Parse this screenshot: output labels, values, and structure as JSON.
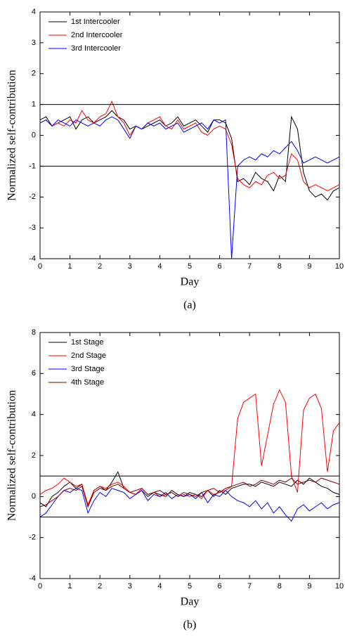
{
  "chart_data": [
    {
      "type": "line",
      "ylabel": "Normalized self-contribution",
      "xlabel": "Day",
      "caption": "(a)",
      "xlim": [
        0,
        10
      ],
      "xticks": [
        0,
        1,
        2,
        3,
        4,
        5,
        6,
        7,
        8,
        9,
        10
      ],
      "ylim": [
        -4,
        4
      ],
      "yticks": [
        -4,
        -3,
        -2,
        -1,
        0,
        1,
        2,
        3,
        4
      ],
      "hlines": [
        1,
        -1
      ],
      "legend": "upper left",
      "x": [
        0,
        0.2,
        0.4,
        0.6,
        0.8,
        1,
        1.2,
        1.4,
        1.6,
        1.8,
        2,
        2.2,
        2.4,
        2.6,
        2.8,
        3,
        3.2,
        3.4,
        3.6,
        3.8,
        4,
        4.2,
        4.4,
        4.6,
        4.8,
        5,
        5.2,
        5.4,
        5.6,
        5.8,
        6,
        6.2,
        6.4,
        6.6,
        6.8,
        7,
        7.2,
        7.4,
        7.6,
        7.8,
        8,
        8.2,
        8.4,
        8.6,
        8.8,
        9,
        9.2,
        9.4,
        9.6,
        9.8,
        10
      ],
      "series": [
        {
          "name": "1st Intercooler",
          "color": "#000000",
          "values": [
            0.5,
            0.6,
            0.3,
            0.4,
            0.5,
            0.6,
            0.2,
            0.5,
            0.6,
            0.4,
            0.5,
            0.6,
            0.8,
            0.6,
            0.5,
            0.2,
            0.3,
            0.2,
            0.3,
            0.4,
            0.5,
            0.3,
            0.4,
            0.6,
            0.3,
            0.4,
            0.5,
            0.3,
            0.1,
            0.5,
            0.5,
            0.4,
            -0.1,
            -1.5,
            -1.4,
            -1.6,
            -1.2,
            -1.4,
            -1.5,
            -1.8,
            -1.3,
            -1.5,
            0.6,
            0.2,
            -1.2,
            -1.8,
            -2.0,
            -1.9,
            -2.1,
            -1.8,
            -1.7
          ]
        },
        {
          "name": "2nd Intercooler",
          "color": "#ff0000",
          "values": [
            0.4,
            0.5,
            0.3,
            0.4,
            0.3,
            0.5,
            0.4,
            0.8,
            0.5,
            0.4,
            0.6,
            0.7,
            1.1,
            0.6,
            0.4,
            0.0,
            0.3,
            0.2,
            0.4,
            0.5,
            0.6,
            0.3,
            0.2,
            0.5,
            0.2,
            0.3,
            0.4,
            0.1,
            0.0,
            0.2,
            0.3,
            0.2,
            -0.3,
            -1.4,
            -1.6,
            -1.7,
            -1.5,
            -1.6,
            -1.3,
            -1.2,
            -1.4,
            -1.3,
            -0.6,
            -0.8,
            -1.5,
            -1.7,
            -1.6,
            -1.7,
            -1.8,
            -1.7,
            -1.6
          ]
        },
        {
          "name": "3rd Intercooler",
          "color": "#0000ff",
          "values": [
            0.4,
            0.5,
            0.3,
            0.5,
            0.4,
            0.3,
            0.5,
            0.4,
            0.3,
            0.4,
            0.3,
            0.5,
            0.6,
            0.5,
            0.2,
            -0.1,
            0.3,
            0.2,
            0.4,
            0.3,
            0.4,
            0.2,
            0.3,
            0.4,
            0.1,
            0.2,
            0.3,
            0.4,
            0.2,
            0.5,
            0.4,
            0.5,
            -4.0,
            -1.0,
            -0.8,
            -0.7,
            -0.8,
            -0.6,
            -0.7,
            -0.5,
            -0.6,
            -0.4,
            -0.2,
            -0.5,
            -0.9,
            -0.8,
            -0.7,
            -0.8,
            -0.9,
            -0.8,
            -0.7
          ]
        }
      ]
    },
    {
      "type": "line",
      "ylabel": "Normalized self-contribution",
      "xlabel": "Day",
      "caption": "(b)",
      "xlim": [
        0,
        10
      ],
      "xticks": [
        0,
        1,
        2,
        3,
        4,
        5,
        6,
        7,
        8,
        9,
        10
      ],
      "ylim": [
        -4,
        8
      ],
      "yticks": [
        -4,
        -2,
        0,
        2,
        4,
        6,
        8
      ],
      "hlines": [
        1,
        -1
      ],
      "legend": "upper left",
      "x": [
        0,
        0.2,
        0.4,
        0.6,
        0.8,
        1,
        1.2,
        1.4,
        1.6,
        1.8,
        2,
        2.2,
        2.4,
        2.6,
        2.8,
        3,
        3.2,
        3.4,
        3.6,
        3.8,
        4,
        4.2,
        4.4,
        4.6,
        4.8,
        5,
        5.2,
        5.4,
        5.6,
        5.8,
        6,
        6.2,
        6.4,
        6.6,
        6.8,
        7,
        7.2,
        7.4,
        7.6,
        7.8,
        8,
        8.2,
        8.4,
        8.6,
        8.8,
        9,
        9.2,
        9.4,
        9.6,
        9.8,
        10
      ],
      "series": [
        {
          "name": "1st Stage",
          "color": "#000000",
          "values": [
            -0.3,
            -0.5,
            0.0,
            0.2,
            0.5,
            0.7,
            0.4,
            0.6,
            -0.5,
            0.3,
            0.5,
            0.3,
            0.7,
            1.2,
            0.4,
            0.2,
            0.1,
            0.3,
            0.0,
            0.2,
            0.1,
            0.0,
            0.3,
            0.1,
            0.0,
            0.2,
            0.1,
            0.0,
            0.3,
            0.0,
            0.3,
            0.1,
            0.4,
            0.5,
            0.6,
            0.6,
            0.5,
            0.7,
            0.6,
            0.5,
            0.7,
            0.6,
            0.5,
            0.8,
            0.6,
            0.9,
            0.7,
            0.5,
            0.4,
            0.2,
            0.1
          ]
        },
        {
          "name": "2nd Stage",
          "color": "#ff0000",
          "values": [
            0.1,
            0.3,
            0.4,
            0.6,
            0.9,
            0.7,
            0.5,
            0.6,
            -0.4,
            0.3,
            0.5,
            0.4,
            0.6,
            0.7,
            0.5,
            0.2,
            0.1,
            0.4,
            0.1,
            0.2,
            0.0,
            0.1,
            0.2,
            0.0,
            0.1,
            0.0,
            0.1,
            -0.1,
            0.3,
            0.1,
            0.2,
            0.3,
            0.5,
            3.8,
            4.6,
            4.8,
            5.0,
            1.5,
            3.0,
            4.5,
            5.2,
            4.6,
            1.0,
            0.2,
            4.2,
            4.8,
            5.0,
            4.3,
            1.2,
            3.2,
            3.6
          ]
        },
        {
          "name": "3rd Stage",
          "color": "#0000ff",
          "values": [
            -1.0,
            -0.8,
            -0.4,
            0.0,
            0.3,
            0.2,
            0.4,
            0.3,
            -0.8,
            -0.2,
            0.2,
            0.0,
            0.4,
            0.3,
            0.2,
            -0.1,
            0.1,
            0.3,
            -0.2,
            0.1,
            0.0,
            0.2,
            -0.1,
            0.1,
            0.0,
            0.1,
            -0.1,
            0.2,
            -0.3,
            0.1,
            0.0,
            0.3,
            0.0,
            -0.2,
            -0.3,
            -0.5,
            -0.2,
            -0.6,
            -0.3,
            -0.8,
            -0.5,
            -0.9,
            -1.2,
            -0.6,
            -0.4,
            -0.7,
            -0.5,
            -0.3,
            -0.6,
            -0.4,
            -0.3
          ]
        },
        {
          "name": "4th Stage",
          "color": "#800000",
          "values": [
            -0.5,
            -0.4,
            -0.2,
            0.0,
            0.3,
            0.4,
            0.3,
            0.5,
            -0.5,
            0.2,
            0.4,
            0.3,
            0.5,
            0.6,
            0.4,
            0.2,
            0.3,
            0.4,
            0.1,
            0.2,
            0.3,
            0.1,
            0.2,
            0.0,
            0.2,
            0.1,
            0.0,
            0.2,
            0.3,
            0.4,
            0.2,
            0.4,
            0.5,
            0.6,
            0.7,
            0.5,
            0.6,
            0.8,
            0.7,
            0.6,
            0.8,
            0.7,
            0.9,
            0.6,
            0.7,
            0.8,
            0.7,
            0.9,
            0.8,
            0.7,
            0.6
          ]
        }
      ]
    }
  ]
}
